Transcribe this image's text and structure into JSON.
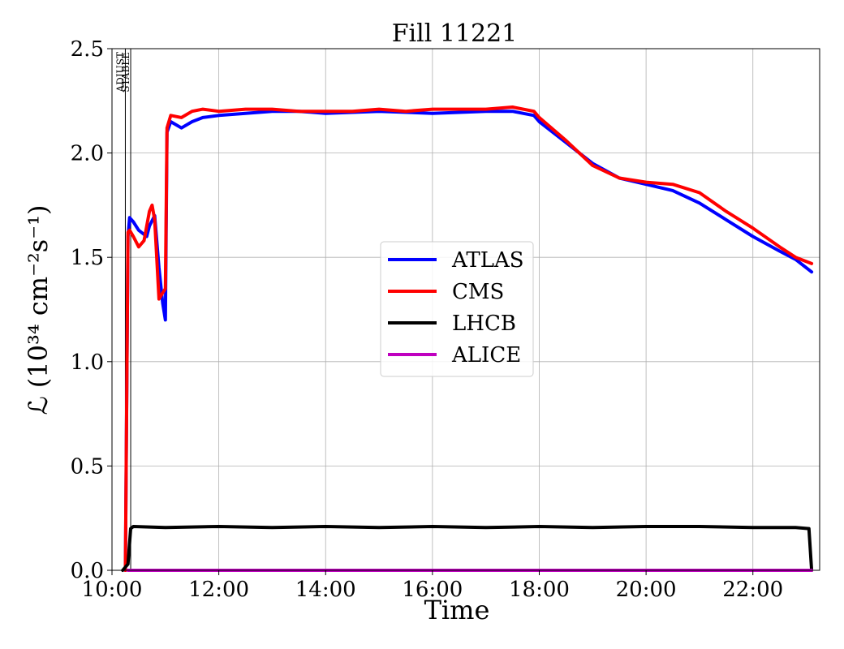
{
  "chart_data": {
    "type": "line",
    "title": "Fill 11221",
    "xlabel": "Time",
    "ylabel": "ℒ (10³⁴ cm⁻²s⁻¹)",
    "x_unit": "hours",
    "xlim": [
      10.0,
      23.25
    ],
    "ylim": [
      0.0,
      2.5
    ],
    "xticks": [
      {
        "value": 10,
        "label": "10:00"
      },
      {
        "value": 12,
        "label": "12:00"
      },
      {
        "value": 14,
        "label": "14:00"
      },
      {
        "value": 16,
        "label": "16:00"
      },
      {
        "value": 18,
        "label": "18:00"
      },
      {
        "value": 20,
        "label": "20:00"
      },
      {
        "value": 22,
        "label": "22:00"
      }
    ],
    "yticks": [
      {
        "value": 0.0,
        "label": "0.0"
      },
      {
        "value": 0.5,
        "label": "0.5"
      },
      {
        "value": 1.0,
        "label": "1.0"
      },
      {
        "value": 1.5,
        "label": "1.5"
      },
      {
        "value": 2.0,
        "label": "2.0"
      },
      {
        "value": 2.5,
        "label": "2.5"
      }
    ],
    "grid": true,
    "legend_position": "center",
    "phase_markers": [
      {
        "x": 10.25,
        "label": "ADJUST"
      },
      {
        "x": 10.35,
        "label": "STABLE"
      }
    ],
    "series": [
      {
        "name": "ATLAS",
        "color": "#0000ff",
        "x": [
          10.25,
          10.3,
          10.33,
          10.4,
          10.5,
          10.6,
          10.65,
          10.7,
          10.8,
          10.88,
          10.95,
          11.0,
          11.03,
          11.1,
          11.3,
          11.5,
          11.7,
          12.0,
          12.5,
          13.0,
          13.5,
          14.0,
          15.0,
          16.0,
          17.0,
          17.5,
          17.9,
          18.0,
          18.5,
          19.0,
          19.5,
          20.0,
          20.5,
          21.0,
          21.5,
          22.0,
          22.5,
          22.8,
          23.1
        ],
        "y": [
          0.0,
          1.6,
          1.69,
          1.67,
          1.63,
          1.61,
          1.6,
          1.65,
          1.7,
          1.45,
          1.28,
          1.2,
          2.1,
          2.15,
          2.12,
          2.15,
          2.17,
          2.18,
          2.19,
          2.2,
          2.2,
          2.19,
          2.2,
          2.19,
          2.2,
          2.2,
          2.18,
          2.15,
          2.05,
          1.95,
          1.88,
          1.85,
          1.82,
          1.76,
          1.68,
          1.6,
          1.53,
          1.49,
          1.43
        ]
      },
      {
        "name": "CMS",
        "color": "#ff0000",
        "x": [
          10.25,
          10.3,
          10.33,
          10.4,
          10.5,
          10.6,
          10.7,
          10.75,
          10.8,
          10.88,
          10.95,
          11.0,
          11.03,
          11.1,
          11.3,
          11.5,
          11.7,
          12.0,
          12.5,
          13.0,
          13.5,
          14.0,
          14.5,
          15.0,
          15.5,
          16.0,
          16.5,
          17.0,
          17.5,
          17.9,
          18.0,
          18.5,
          19.0,
          19.5,
          20.0,
          20.5,
          21.0,
          21.5,
          22.0,
          22.5,
          22.8,
          23.1
        ],
        "y": [
          0.0,
          1.62,
          1.63,
          1.6,
          1.55,
          1.58,
          1.72,
          1.75,
          1.68,
          1.3,
          1.33,
          1.35,
          2.12,
          2.18,
          2.17,
          2.2,
          2.21,
          2.2,
          2.21,
          2.21,
          2.2,
          2.2,
          2.2,
          2.21,
          2.2,
          2.21,
          2.21,
          2.21,
          2.22,
          2.2,
          2.17,
          2.06,
          1.94,
          1.88,
          1.86,
          1.85,
          1.81,
          1.72,
          1.64,
          1.55,
          1.5,
          1.47
        ]
      },
      {
        "name": "LHCB",
        "color": "#000000",
        "x": [
          10.2,
          10.3,
          10.35,
          10.4,
          11.0,
          12.0,
          13.0,
          14.0,
          15.0,
          16.0,
          17.0,
          18.0,
          19.0,
          20.0,
          21.0,
          22.0,
          22.8,
          23.05,
          23.1
        ],
        "y": [
          0.0,
          0.03,
          0.2,
          0.21,
          0.205,
          0.21,
          0.205,
          0.21,
          0.205,
          0.21,
          0.205,
          0.21,
          0.205,
          0.21,
          0.21,
          0.205,
          0.205,
          0.2,
          0.0
        ]
      },
      {
        "name": "ALICE",
        "color": "#bf00bf",
        "x": [
          10.3,
          23.1
        ],
        "y": [
          0.0,
          0.0
        ]
      }
    ]
  }
}
